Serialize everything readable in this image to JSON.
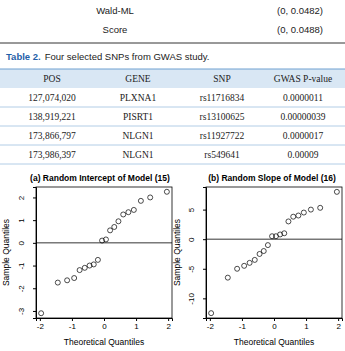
{
  "top_rows": [
    [
      "Wald-ML",
      "(0, 0.0482)"
    ],
    [
      "Score",
      "(0, 0.0488)"
    ]
  ],
  "table": {
    "label": "Table 2.",
    "caption": "Four selected SNPs from GWAS study.",
    "header": [
      "POS",
      "GENE",
      "SNP",
      "GWAS P-value"
    ],
    "rows": [
      [
        "127,074,020",
        "PLXNA1",
        "rs11716834",
        "0.0000011"
      ],
      [
        "138,919,221",
        "PISRT1",
        "rs13100625",
        "0.00000039"
      ],
      [
        "173,866,797",
        "NLGN1",
        "rs11927722",
        "0.0000017"
      ],
      [
        "173,986,397",
        "NLGN1",
        "rs549641",
        "0.00009"
      ]
    ]
  },
  "chart_data": [
    {
      "type": "scatter",
      "title": "(a) Random Intercept of Model (15)",
      "x_label": "Theoretical Quantiles",
      "y_label": "Sample Quantiles",
      "x": [
        -1.96,
        -1.44,
        -1.15,
        -0.93,
        -0.76,
        -0.6,
        -0.45,
        -0.32,
        -0.19,
        -0.06,
        0.06,
        0.19,
        0.32,
        0.45,
        0.6,
        0.76,
        0.93,
        1.15,
        1.44,
        1.96
      ],
      "values": [
        -3.1,
        -1.75,
        -1.65,
        -1.55,
        -1.2,
        -1.1,
        -1.0,
        -0.95,
        -0.75,
        0.1,
        0.15,
        0.55,
        0.7,
        0.95,
        1.25,
        1.35,
        1.45,
        1.85,
        2.0,
        2.25
      ],
      "reference_line": 0,
      "xlim": [
        -2.12,
        2.12
      ],
      "xticks": [
        -2,
        -1,
        0,
        1,
        2
      ],
      "ylim": [
        -3.31,
        2.46
      ],
      "yticks": [
        -3,
        -2,
        -1,
        0,
        1,
        2
      ],
      "marker": "open-circle",
      "color": "#000000"
    },
    {
      "type": "scatter",
      "title": "(b) Random Slope of Model (16)",
      "x_label": "Theoretical Quantiles",
      "y_label": "Sample Quantiles",
      "x": [
        -1.96,
        -1.44,
        -1.15,
        -0.93,
        -0.76,
        -0.6,
        -0.45,
        -0.32,
        -0.19,
        -0.06,
        0.06,
        0.19,
        0.32,
        0.45,
        0.6,
        0.76,
        0.93,
        1.15,
        1.44,
        1.96
      ],
      "values": [
        -12.5,
        -6.5,
        -5.0,
        -4.5,
        -4.0,
        -3.5,
        -2.5,
        -2.0,
        -1.0,
        0.5,
        0.5,
        0.8,
        1.0,
        3.0,
        3.8,
        4.0,
        4.5,
        5.0,
        5.3,
        8.0
      ],
      "reference_line": 0,
      "xlim": [
        -2.12,
        2.12
      ],
      "xticks": [
        -2,
        -1,
        0,
        1,
        2
      ],
      "ylim": [
        -13.32,
        8.82
      ],
      "yticks": [
        -10,
        -5,
        0,
        5
      ],
      "marker": "open-circle",
      "color": "#000000"
    }
  ]
}
